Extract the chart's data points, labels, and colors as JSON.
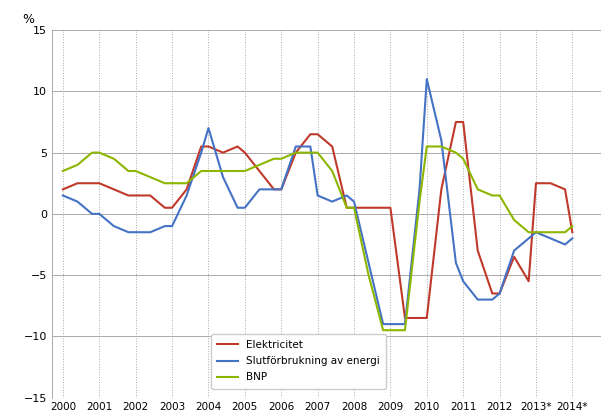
{
  "elektricitet_color": "#c0392b",
  "slutforbrukning_color": "#4472c4",
  "bnp_color": "#8db600",
  "background_color": "#ffffff",
  "grid_color": "#aaaaaa",
  "ylim": [
    -15,
    15
  ],
  "yticks": [
    -15,
    -10,
    -5,
    0,
    5,
    10,
    15
  ],
  "ylabel": "%",
  "legend_labels": [
    "Elektricitet",
    "Slutförbrukning av energi",
    "BNP"
  ],
  "years_x": [
    2000.0,
    2000.4,
    2000.8,
    2001.0,
    2001.4,
    2001.8,
    2002.0,
    2002.4,
    2002.8,
    2003.0,
    2003.4,
    2003.8,
    2004.0,
    2004.4,
    2004.8,
    2005.0,
    2005.4,
    2005.8,
    2006.0,
    2006.4,
    2006.8,
    2007.0,
    2007.4,
    2007.8,
    2008.0,
    2008.4,
    2008.8,
    2009.0,
    2009.4,
    2009.8,
    2010.0,
    2010.4,
    2010.8,
    2011.0,
    2011.4,
    2011.8,
    2012.0,
    2012.4,
    2012.8,
    2013.0,
    2013.4,
    2013.8,
    2014.0
  ],
  "elek": [
    2.0,
    2.5,
    2.5,
    2.5,
    2.0,
    1.5,
    1.5,
    1.5,
    0.5,
    0.5,
    2.0,
    5.5,
    5.5,
    5.0,
    5.5,
    5.0,
    3.5,
    2.0,
    2.0,
    5.0,
    6.5,
    6.5,
    5.5,
    0.5,
    0.5,
    0.5,
    0.5,
    0.5,
    -8.5,
    -8.5,
    -8.5,
    2.0,
    7.5,
    7.5,
    -3.0,
    -6.5,
    -6.5,
    -3.5,
    -5.5,
    2.5,
    2.5,
    2.0,
    -1.5
  ],
  "slut": [
    1.5,
    1.0,
    0.0,
    0.0,
    -1.0,
    -1.5,
    -1.5,
    -1.5,
    -1.0,
    -1.0,
    1.5,
    5.0,
    7.0,
    3.0,
    0.5,
    0.5,
    2.0,
    2.0,
    2.0,
    5.5,
    5.5,
    1.5,
    1.0,
    1.5,
    1.0,
    -4.0,
    -9.0,
    -9.0,
    -9.0,
    2.0,
    11.0,
    6.0,
    -4.0,
    -5.5,
    -7.0,
    -7.0,
    -6.5,
    -3.0,
    -2.0,
    -1.5,
    -2.0,
    -2.5,
    -2.0
  ],
  "bnp": [
    3.5,
    4.0,
    5.0,
    5.0,
    4.5,
    3.5,
    3.5,
    3.0,
    2.5,
    2.5,
    2.5,
    3.5,
    3.5,
    3.5,
    3.5,
    3.5,
    4.0,
    4.5,
    4.5,
    5.0,
    5.0,
    5.0,
    3.5,
    0.5,
    0.5,
    -5.0,
    -9.5,
    -9.5,
    -9.5,
    1.0,
    5.5,
    5.5,
    5.0,
    4.5,
    2.0,
    1.5,
    1.5,
    -0.5,
    -1.5,
    -1.5,
    -1.5,
    -1.5,
    -1.0
  ]
}
